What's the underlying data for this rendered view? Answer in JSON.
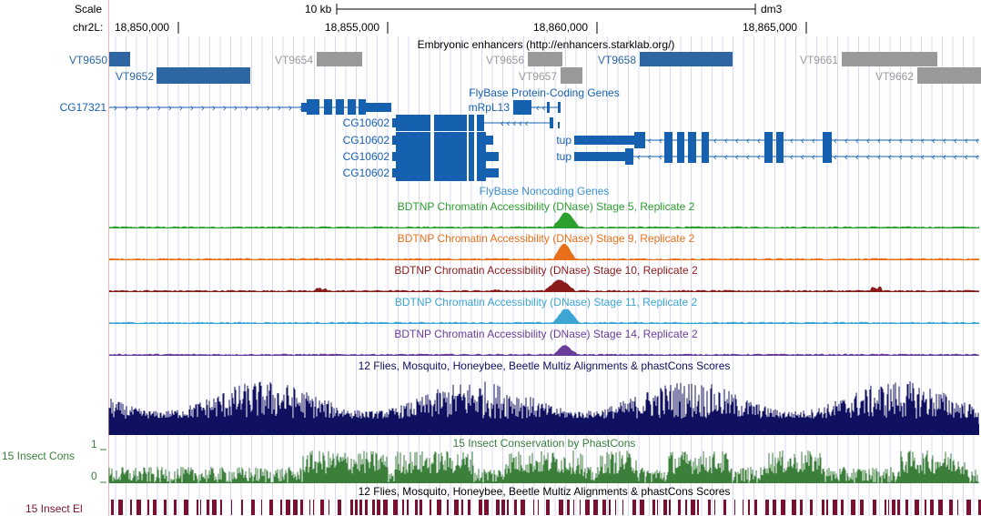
{
  "ruler": {
    "scale_label": "Scale",
    "scale_bar_label": "10 kb",
    "assembly": "dm3",
    "chrom_label": "chr2L:",
    "ticks": [
      "18,850,000",
      "18,855,000",
      "18,860,000",
      "18,865,000"
    ]
  },
  "tracks": {
    "enhancers": {
      "title": "Embryonic enhancers (http://enhancers.starklab.org/)",
      "items": [
        {
          "label": "VT9650",
          "active": true
        },
        {
          "label": "VT9652",
          "active": true
        },
        {
          "label": "VT9654",
          "active": false
        },
        {
          "label": "VT9656",
          "active": false
        },
        {
          "label": "VT9657",
          "active": false
        },
        {
          "label": "VT9658",
          "active": true
        },
        {
          "label": "VT9661",
          "active": false
        },
        {
          "label": "VT9662",
          "active": false
        }
      ]
    },
    "protein_coding": {
      "title": "FlyBase Protein-Coding Genes",
      "genes": [
        "CG17321",
        "mRpL13",
        "CG10602",
        "CG10602",
        "CG10602",
        "CG10602",
        "tup",
        "tup"
      ]
    },
    "noncoding": {
      "title": "FlyBase Noncoding Genes"
    },
    "dnase": [
      {
        "title": "BDTNP Chromatin Accessibility (DNase) Stage 5, Replicate 2",
        "color": "#2ca02c"
      },
      {
        "title": "BDTNP Chromatin Accessibility (DNase) Stage 9, Replicate 2",
        "color": "#e8701a"
      },
      {
        "title": "BDTNP Chromatin Accessibility (DNase) Stage 10, Replicate 2",
        "color": "#8b1a1a"
      },
      {
        "title": "BDTNP Chromatin Accessibility (DNase) Stage 11, Replicate 2",
        "color": "#3ba6d4"
      },
      {
        "title": "BDTNP Chromatin Accessibility (DNase) Stage 14, Replicate 2",
        "color": "#6a3d9a"
      }
    ],
    "multiz": {
      "title": "12 Flies, Mosquito, Honeybee, Beetle Multiz Alignments & phastCons Scores",
      "color": "#101060"
    },
    "phastcons": {
      "title": "15 Insect Conservation by PhastCons",
      "side_label": "15 Insect Cons",
      "y_max": "1",
      "y_min": "0",
      "color": "#3b7f3b"
    },
    "elements": {
      "title": "12 Flies, Mosquito, Honeybee, Beetle Multiz Alignments & phastCons Scores",
      "side_label": "15 Insect El",
      "color": "#7a1030"
    }
  },
  "colors": {
    "gene": "#1660b0",
    "enhancer_active": "#2e66a3",
    "enhancer_inactive": "#999999",
    "grid": "#d8d8f4",
    "left_border": "#f4b4b4"
  }
}
